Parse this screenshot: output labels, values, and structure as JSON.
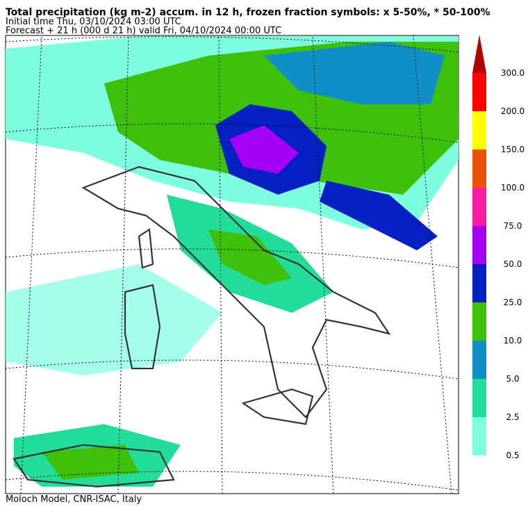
{
  "header": {
    "title": "Total precipitation (kg m-2) accum. in 12 h, frozen fraction symbols: x 5-50%, * 50-100%",
    "initial_time": "Initial time  Thu, 03/10/2024  03:00 UTC",
    "forecast": "Forecast  +  21 h  (000 d 21 h)  valid Fri, 04/10/2024 00:00 UTC"
  },
  "colorbar": {
    "levels": [
      {
        "label": "0.5",
        "color": "#7ffde0"
      },
      {
        "label": "2.5",
        "color": "#22dc9a"
      },
      {
        "label": "5.0",
        "color": "#0f8fc6"
      },
      {
        "label": "10.0",
        "color": "#3ebf0a"
      },
      {
        "label": "25.0",
        "color": "#0420c0"
      },
      {
        "label": "50.0",
        "color": "#a400f8"
      },
      {
        "label": "75.0",
        "color": "#fb1aa0"
      },
      {
        "label": "100.0",
        "color": "#e85208"
      },
      {
        "label": "150.0",
        "color": "#ffff00"
      },
      {
        "label": "200.0",
        "color": "#ff0000"
      },
      {
        "label": "300.0",
        "color": "#b00000"
      }
    ]
  },
  "footer": "Moloch Model, CNR-ISAC, Italy"
}
